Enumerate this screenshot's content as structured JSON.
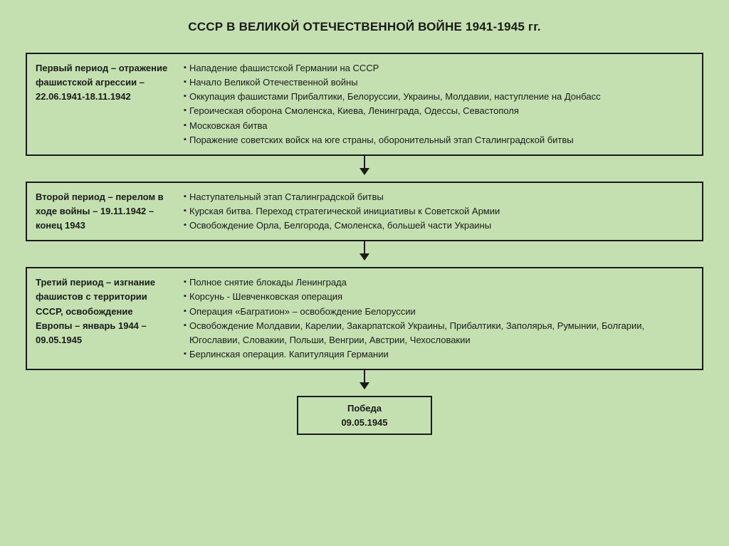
{
  "colors": {
    "background": "#c4e0b0",
    "border": "#1a1a1a",
    "text": "#1a1a1a"
  },
  "title": "СССР В ВЕЛИКОЙ ОТЕЧЕСТВЕННОЙ ВОЙНЕ 1941-1945 гг.",
  "periods": [
    {
      "left": "Первый период – отражение фашистской агрессии – 22.06.1941-18.11.1942",
      "items": [
        "Нападение фашистской Германии на СССР",
        "Начало Великой Отечественной войны",
        "Оккупация фашистами Прибалтики, Белоруссии, Украины, Молдавии, наступление на Донбасс",
        "Героическая оборона Смоленска, Киева, Ленинграда, Одессы, Севастополя",
        "Московская битва",
        "Поражение советских войск на юге страны, оборонительный этап Сталинградской битвы"
      ]
    },
    {
      "left": "Второй период – перелом в ходе войны – 19.11.1942 – конец 1943",
      "items": [
        "Наступательный этап Сталинградской битвы",
        "Курская битва. Переход стратегической инициативы к Советской Армии",
        "Освобождение Орла, Белгорода, Смоленска, большей части Украины"
      ]
    },
    {
      "left": "Третий период – изгнание фашистов с территории СССР, освобождение Европы – январь 1944 – 09.05.1945",
      "items": [
        "Полное снятие блокады Ленинграда",
        "Корсунь - Шевченковская операция",
        "Операция «Багратион» – освобождение Белоруссии",
        "Освобождение Молдавии, Карелии, Закарпатской Украины, Прибалтики, Заполярья, Румынии, Болгарии, Югославии, Словакии, Польши, Венгрии, Австрии, Чехословакии",
        "Берлинская операция. Капитуляция Германии"
      ]
    }
  ],
  "victory": {
    "label": "Победа",
    "date": "09.05.1945"
  },
  "layout": {
    "leftColWidthPx": 210,
    "boxBorderPx": 2,
    "fontSizePt": 13,
    "titleFontSizePt": 17,
    "bulletGlyph": "▪"
  }
}
